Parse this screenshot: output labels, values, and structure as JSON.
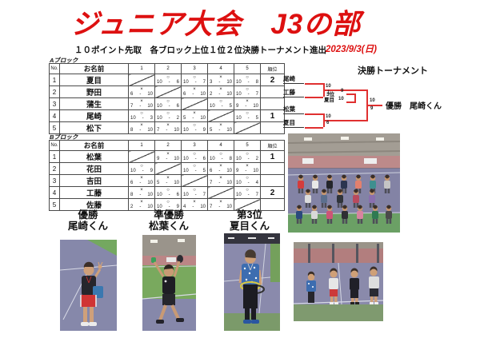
{
  "title": "ジュニア大会　J3の部",
  "subtitle": "１０ポイント先取　各ブロック上位１位２位決勝トーナメント進出",
  "date": "2023/9/3(日)",
  "colors": {
    "title_red": "#dd1010",
    "bracket_red": "#e03030"
  },
  "blocks": [
    {
      "label": "Aブロック",
      "headers": [
        "No.",
        "お名前",
        "1",
        "2",
        "3",
        "4",
        "5",
        "順位"
      ],
      "rows": [
        {
          "no": "1",
          "name": "夏目",
          "rank": "2",
          "cells": [
            null,
            {
              "mark": "○",
              "score": "10 - 6"
            },
            {
              "mark": "○",
              "score": "10 - 7"
            },
            {
              "mark": "×",
              "score": "3 - 10"
            },
            {
              "mark": "○",
              "score": "10 - 8"
            }
          ]
        },
        {
          "no": "2",
          "name": "野田",
          "rank": "",
          "cells": [
            {
              "mark": "×",
              "score": "6 - 10"
            },
            null,
            {
              "mark": "×",
              "score": "6 - 10"
            },
            {
              "mark": "×",
              "score": "2 - 10"
            },
            {
              "mark": "○",
              "score": "10 - 7"
            }
          ]
        },
        {
          "no": "3",
          "name": "蒲生",
          "rank": "",
          "cells": [
            {
              "mark": "×",
              "score": "7 - 10"
            },
            {
              "mark": "○",
              "score": "10 - 6"
            },
            null,
            {
              "mark": "○",
              "score": "10 - 5"
            },
            {
              "mark": "×",
              "score": "9 - 10"
            }
          ]
        },
        {
          "no": "4",
          "name": "尾崎",
          "rank": "1",
          "cells": [
            {
              "mark": "○",
              "score": "10 - 3"
            },
            {
              "mark": "○",
              "score": "10 - 2"
            },
            {
              "mark": "×",
              "score": "5 - 10"
            },
            null,
            {
              "mark": "○",
              "score": "10 - 5"
            }
          ]
        },
        {
          "no": "5",
          "name": "松下",
          "rank": "",
          "cells": [
            {
              "mark": "×",
              "score": "8 - 10"
            },
            {
              "mark": "×",
              "score": "7 - 10"
            },
            {
              "mark": "○",
              "score": "10 - 9"
            },
            {
              "mark": "×",
              "score": "5 - 10"
            },
            null
          ]
        }
      ]
    },
    {
      "label": "Bブロック",
      "headers": [
        "No.",
        "お名前",
        "1",
        "2",
        "3",
        "4",
        "5",
        "順位"
      ],
      "rows": [
        {
          "no": "1",
          "name": "松葉",
          "rank": "1",
          "cells": [
            null,
            {
              "mark": "×",
              "score": "9 - 10"
            },
            {
              "mark": "○",
              "score": "10 - 6"
            },
            {
              "mark": "○",
              "score": "10 - 8"
            },
            {
              "mark": "○",
              "score": "10 - 2"
            }
          ]
        },
        {
          "no": "2",
          "name": "花田",
          "rank": "",
          "cells": [
            {
              "mark": "○",
              "score": "10 - 9"
            },
            null,
            {
              "mark": "○",
              "score": "10 - 5"
            },
            {
              "mark": "×",
              "score": "6 - 10"
            },
            {
              "mark": "×",
              "score": "9 - 10"
            }
          ]
        },
        {
          "no": "3",
          "name": "吉田",
          "rank": "",
          "cells": [
            {
              "mark": "×",
              "score": "6 - 10"
            },
            {
              "mark": "×",
              "score": "5 - 10"
            },
            null,
            {
              "mark": "×",
              "score": "7 - 10"
            },
            {
              "mark": "○",
              "score": "10 - 4"
            }
          ]
        },
        {
          "no": "4",
          "name": "工藤",
          "rank": "2",
          "cells": [
            {
              "mark": "×",
              "score": "8 - 10"
            },
            {
              "mark": "○",
              "score": "10 - 6"
            },
            {
              "mark": "○",
              "score": "10 - 7"
            },
            null,
            {
              "mark": "○",
              "score": "10 - 7"
            }
          ]
        },
        {
          "no": "5",
          "name": "佐藤",
          "rank": "",
          "cells": [
            {
              "mark": "×",
              "score": "2 - 10"
            },
            {
              "mark": "○",
              "score": "10 - 9"
            },
            {
              "mark": "×",
              "score": "4 - 10"
            },
            {
              "mark": "×",
              "score": "7 - 10"
            },
            null
          ]
        }
      ]
    }
  ],
  "bracket": {
    "title": "決勝トーナメント",
    "players": [
      "尾崎",
      "工藤",
      "松葉",
      "夏目"
    ],
    "scores": {
      "sf1": [
        "10",
        "1"
      ],
      "sf2": [
        "10",
        "6"
      ],
      "final": [
        "10",
        "9"
      ],
      "third": [
        "9",
        "10"
      ]
    },
    "third_label": "3位",
    "third_winner": "夏目",
    "champion": "優勝　尾崎くん"
  },
  "podium": [
    {
      "title": "優勝",
      "name": "尾崎くん"
    },
    {
      "title": "準優勝",
      "name": "松葉くん"
    },
    {
      "title": "第3位",
      "name": "夏目くん"
    }
  ]
}
